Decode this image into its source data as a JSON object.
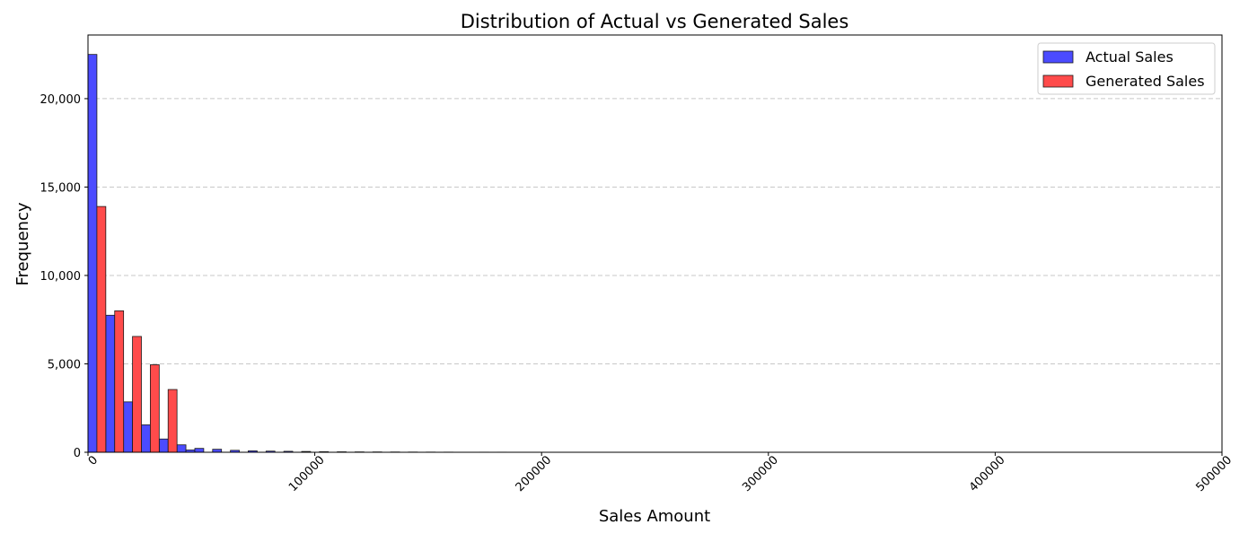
{
  "chart_data": {
    "type": "bar",
    "title": "Distribution of Actual vs Generated Sales",
    "xlabel": "Sales Amount",
    "ylabel": "Frequency",
    "xlim": [
      0,
      500000
    ],
    "ylim": [
      0,
      23600
    ],
    "x_ticks": [
      0,
      100000,
      200000,
      300000,
      400000,
      500000
    ],
    "x_tick_labels": [
      "0",
      "100000",
      "200000",
      "300000",
      "400000",
      "500000"
    ],
    "y_ticks": [
      0,
      5000,
      10000,
      15000,
      20000
    ],
    "y_tick_labels": [
      "0",
      "5,000",
      "10,000",
      "15,000",
      "20,000"
    ],
    "grid": "y-dashed",
    "legend_position": "top-right",
    "bin_width": 7850,
    "bar_width": 3925,
    "series": [
      {
        "name": "Actual Sales",
        "color": "#4b4bff",
        "bins": [
          {
            "x": 0,
            "count": 22500
          },
          {
            "x": 7850,
            "count": 7750
          },
          {
            "x": 15700,
            "count": 2850
          },
          {
            "x": 23550,
            "count": 1550
          },
          {
            "x": 31400,
            "count": 750
          },
          {
            "x": 39250,
            "count": 420
          },
          {
            "x": 43175,
            "count": 130
          },
          {
            "x": 47100,
            "count": 220
          },
          {
            "x": 54950,
            "count": 170
          },
          {
            "x": 62800,
            "count": 110
          },
          {
            "x": 70650,
            "count": 80
          },
          {
            "x": 78500,
            "count": 65
          },
          {
            "x": 86350,
            "count": 55
          },
          {
            "x": 94200,
            "count": 45
          },
          {
            "x": 102050,
            "count": 30
          },
          {
            "x": 109900,
            "count": 25
          },
          {
            "x": 117750,
            "count": 20
          },
          {
            "x": 125600,
            "count": 18
          },
          {
            "x": 133450,
            "count": 15
          },
          {
            "x": 141300,
            "count": 12
          },
          {
            "x": 149150,
            "count": 10
          },
          {
            "x": 157000,
            "count": 8
          },
          {
            "x": 172700,
            "count": 6
          },
          {
            "x": 180550,
            "count": 6
          },
          {
            "x": 235500,
            "count": 4
          },
          {
            "x": 259050,
            "count": 4
          },
          {
            "x": 266900,
            "count": 3
          }
        ]
      },
      {
        "name": "Generated Sales",
        "color": "#ff4b4b",
        "bins": [
          {
            "x": 3925,
            "count": 13900
          },
          {
            "x": 11775,
            "count": 8000
          },
          {
            "x": 19625,
            "count": 6550
          },
          {
            "x": 27475,
            "count": 4950
          },
          {
            "x": 35325,
            "count": 3550
          }
        ]
      }
    ]
  }
}
